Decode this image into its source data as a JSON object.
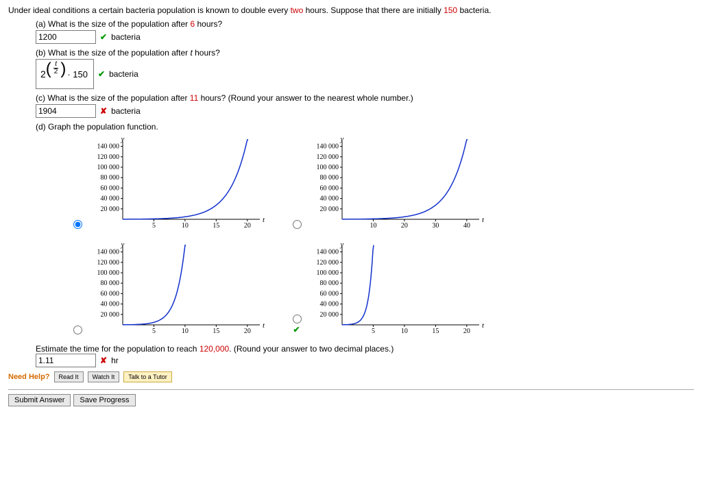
{
  "intro": {
    "prefix": "Under ideal conditions a certain bacteria population is known to double every ",
    "double_time": "two",
    "mid": " hours. Suppose that there are initially ",
    "initial": "150",
    "suffix": " bacteria."
  },
  "parts": {
    "a": {
      "q_pre": "(a) What is the size of the population after ",
      "hours": "6",
      "q_post": " hours?",
      "answer": "1200",
      "unit": "bacteria",
      "status": "correct"
    },
    "b": {
      "q": "(b) What is the size of the population after t hours?",
      "formula": {
        "base": "2",
        "frac_num": "t",
        "frac_den": "2",
        "mult": "· 150"
      },
      "unit": "bacteria",
      "status": "correct"
    },
    "c": {
      "q_pre": "(c) What is the size of the population after ",
      "hours": "11",
      "q_post": " hours? (Round your answer to the nearest whole number.)",
      "answer": "1904",
      "unit": "bacteria",
      "status": "incorrect"
    },
    "d": {
      "q": "(d) Graph the population function."
    }
  },
  "charts": {
    "ylabels": [
      "140 000",
      "120 000",
      "100 000",
      "80 000",
      "60 000",
      "40 000",
      "20 000"
    ],
    "yvalues": [
      140000,
      120000,
      100000,
      80000,
      60000,
      40000,
      20000
    ],
    "ymax": 150000,
    "y_axis_label": "y",
    "x_axis_label": "t",
    "colors": {
      "curve": "#1030cc",
      "axis": "#000000",
      "bg": "#ffffff"
    },
    "options": [
      {
        "id": "g1",
        "xticks": [
          5,
          10,
          15,
          20
        ],
        "xmax": 22,
        "tdouble": 2.0,
        "selected": true,
        "correct": false
      },
      {
        "id": "g2",
        "xticks": [
          10,
          20,
          30,
          40
        ],
        "xmax": 44,
        "tdouble": 4.0,
        "selected": false,
        "correct": false
      },
      {
        "id": "g3",
        "xticks": [
          5,
          10,
          15,
          20
        ],
        "xmax": 22,
        "tdouble": 1.0,
        "selected": false,
        "correct": false
      },
      {
        "id": "g4",
        "xticks": [
          5,
          10,
          15,
          20
        ],
        "xmax": 22,
        "tdouble": 0.5,
        "selected": false,
        "correct": true
      }
    ]
  },
  "estimate": {
    "q_pre": "Estimate the time for the population to reach ",
    "target": "120,000",
    "q_post": ". (Round your answer to two decimal places.)",
    "answer": "1.11",
    "unit": "hr",
    "status": "incorrect"
  },
  "help": {
    "label": "Need Help?",
    "read": "Read It",
    "watch": "Watch It",
    "tutor": "Talk to a Tutor"
  },
  "submit": {
    "submit": "Submit Answer",
    "save": "Save Progress"
  }
}
